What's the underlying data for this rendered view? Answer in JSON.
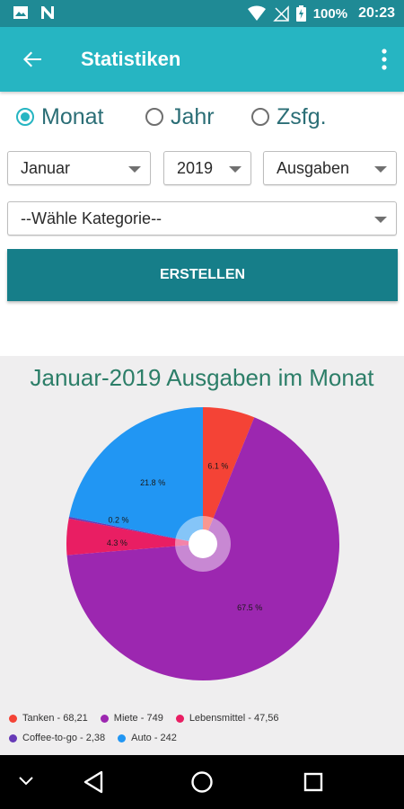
{
  "status_bar": {
    "battery": "100%",
    "time": "20:23",
    "icons": [
      "image-icon",
      "n-logo-icon",
      "wifi-icon",
      "no-signal-icon",
      "battery-icon"
    ]
  },
  "app_bar": {
    "title": "Statistiken",
    "icons": [
      "back-arrow-icon",
      "more-vert-icon"
    ]
  },
  "period_selector": {
    "options": [
      {
        "label": "Monat",
        "checked": true
      },
      {
        "label": "Jahr",
        "checked": false
      },
      {
        "label": "Zsfg.",
        "checked": false
      }
    ]
  },
  "filters": {
    "month": "Januar",
    "year": "2019",
    "type": "Ausgaben",
    "category": "--Wähle Kategorie--"
  },
  "create_button": {
    "label": "ERSTELLEN"
  },
  "colors": {
    "accent": "#26b5c2",
    "status_bar": "#1f8a95",
    "button": "#167e89",
    "tanken": "#f44336",
    "miete": "#9c27b0",
    "lebensmittel": "#e91e63",
    "coffee": "#673ab7",
    "auto": "#2196f3"
  },
  "chart_data": {
    "type": "pie",
    "title": "Januar-2019 Ausgaben im Monat",
    "slices": [
      {
        "name": "Tanken",
        "value": 68.21,
        "label": "6.1 %",
        "color": "#f44336"
      },
      {
        "name": "Miete",
        "value": 749,
        "label": "67.5 %",
        "color": "#9c27b0"
      },
      {
        "name": "Lebensmittel",
        "value": 47.56,
        "label": "4.3 %",
        "color": "#e91e63"
      },
      {
        "name": "Coffee-to-go",
        "value": 2.38,
        "label": "0.2 %",
        "color": "#673ab7"
      },
      {
        "name": "Auto",
        "value": 242,
        "label": "21.8 %",
        "color": "#2196f3"
      }
    ],
    "legend": [
      [
        "Tanken - 68,21",
        "Miete - 749",
        "Lebensmittel - 47,56"
      ],
      [
        "Coffee-to-go - 2,38",
        "Auto - 242"
      ]
    ],
    "legend_placement": "bottom-left"
  },
  "nav_bar": {
    "icons": [
      "collapse-icon",
      "back-triangle-icon",
      "home-circle-icon",
      "recents-square-icon"
    ]
  }
}
